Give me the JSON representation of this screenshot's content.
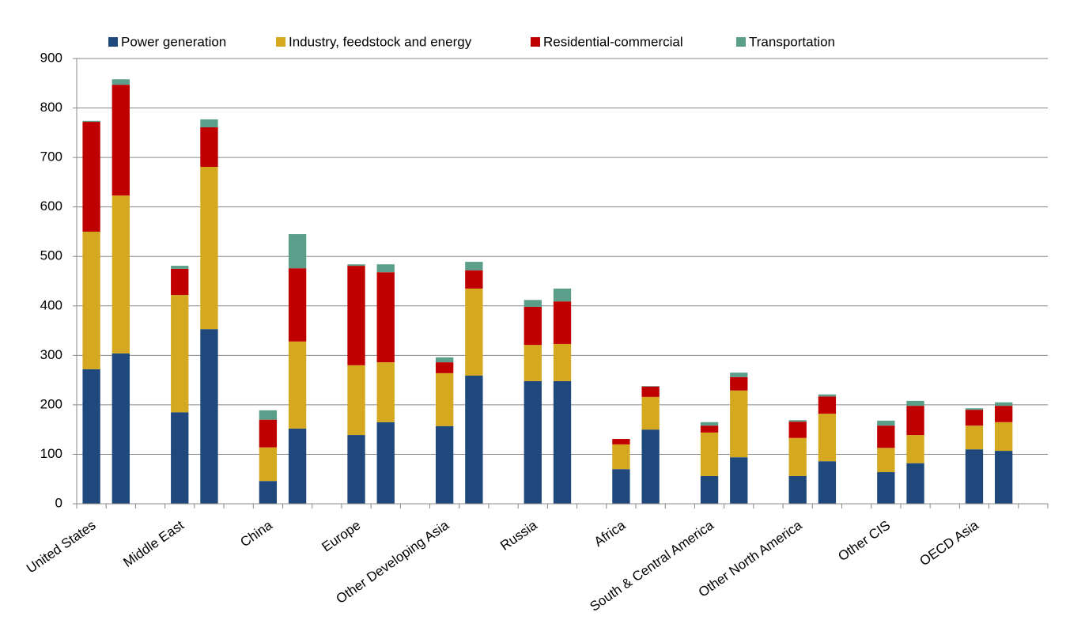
{
  "chart_data": {
    "type": "stacked-bar",
    "categories": [
      "United States",
      null,
      null,
      "Middle East",
      null,
      null,
      "China",
      null,
      null,
      "Europe",
      null,
      null,
      "Other Developing Asia",
      null,
      null,
      "Russia",
      null,
      null,
      "Africa",
      null,
      null,
      "South & Central America",
      null,
      null,
      "Other North America",
      null,
      null,
      "Other CIS",
      null,
      null,
      "OECD Asia",
      null,
      null
    ],
    "series": [
      {
        "name": "Power generation",
        "color": "#1f497d",
        "values": [
          272,
          304,
          null,
          185,
          353,
          null,
          46,
          152,
          null,
          139,
          165,
          null,
          157,
          259,
          null,
          248,
          248,
          null,
          70,
          150,
          null,
          56,
          94,
          null,
          56,
          86,
          null,
          64,
          82,
          null,
          110,
          107,
          null
        ]
      },
      {
        "name": "Industry, feedstock and energy",
        "color": "#d4a91f",
        "values": [
          278,
          319,
          null,
          237,
          328,
          null,
          68,
          176,
          null,
          141,
          121,
          null,
          107,
          176,
          null,
          73,
          75,
          null,
          50,
          66,
          null,
          88,
          135,
          null,
          77,
          96,
          null,
          49,
          57,
          null,
          48,
          58,
          null
        ]
      },
      {
        "name": "Residential-commercial",
        "color": "#c00000",
        "values": [
          222,
          224,
          null,
          53,
          80,
          null,
          56,
          148,
          null,
          201,
          182,
          null,
          22,
          37,
          null,
          77,
          86,
          null,
          11,
          21,
          null,
          14,
          27,
          null,
          33,
          35,
          null,
          45,
          59,
          null,
          32,
          33,
          null
        ]
      },
      {
        "name": "Transportation",
        "color": "#5b9e8a",
        "values": [
          2,
          11,
          null,
          6,
          16,
          null,
          19,
          69,
          null,
          3,
          16,
          null,
          10,
          17,
          null,
          14,
          26,
          null,
          0,
          1,
          null,
          7,
          9,
          null,
          3,
          4,
          null,
          10,
          10,
          null,
          3,
          7,
          null
        ]
      }
    ],
    "ylim": [
      0,
      900
    ],
    "yticks": [
      0,
      100,
      200,
      300,
      400,
      500,
      600,
      700,
      800,
      900
    ],
    "grid": true
  }
}
